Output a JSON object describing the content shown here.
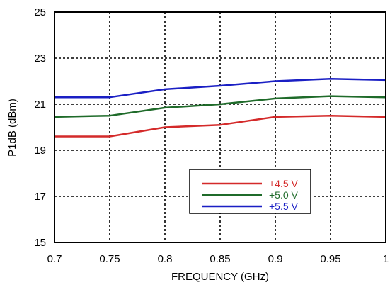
{
  "chart_data": {
    "type": "line",
    "title": "",
    "xlabel": "FREQUENCY (GHz)",
    "ylabel": "P1dB (dBm)",
    "xlim": [
      0.7,
      1.0
    ],
    "ylim": [
      15,
      25
    ],
    "xticks": [
      0.7,
      0.75,
      0.8,
      0.85,
      0.9,
      0.95,
      1.0
    ],
    "xtick_labels": [
      "0.7",
      "0.75",
      "0.8",
      "0.85",
      "0.9",
      "0.95",
      "1"
    ],
    "yticks": [
      15,
      17,
      19,
      21,
      23,
      25
    ],
    "ytick_labels": [
      "15",
      "17",
      "19",
      "21",
      "23",
      "25"
    ],
    "grid": true,
    "legend_position": "lower-center",
    "x": [
      0.7,
      0.75,
      0.8,
      0.85,
      0.9,
      0.95,
      1.0
    ],
    "series": [
      {
        "name": "+4.5 V",
        "color": "#d42a2a",
        "values": [
          19.6,
          19.6,
          20.0,
          20.1,
          20.45,
          20.5,
          20.45
        ]
      },
      {
        "name": "+5.0 V",
        "color": "#1f6b2a",
        "values": [
          20.45,
          20.5,
          20.85,
          21.0,
          21.25,
          21.35,
          21.3
        ]
      },
      {
        "name": "+5.5 V",
        "color": "#1a1fc4",
        "values": [
          21.3,
          21.3,
          21.65,
          21.8,
          22.0,
          22.1,
          22.05
        ]
      }
    ]
  }
}
